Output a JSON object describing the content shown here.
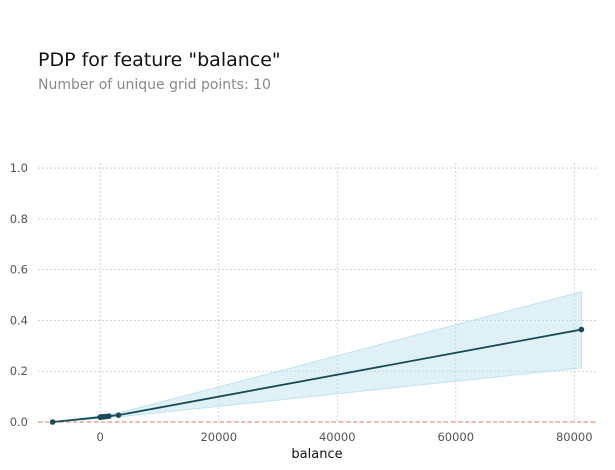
{
  "header": {
    "title": "PDP for feature \"balance\"",
    "subtitle": "Number of unique grid points: 10"
  },
  "chart_data": {
    "type": "line",
    "title": "PDP for feature \"balance\"",
    "subtitle": "Number of unique grid points: 10",
    "xlabel": "balance",
    "ylabel": "",
    "xlim": [
      -10500,
      84000
    ],
    "ylim": [
      0,
      1.0
    ],
    "xticks": [
      0,
      20000,
      40000,
      60000,
      80000
    ],
    "xtick_labels": [
      "0",
      "20000",
      "40000",
      "60000",
      "80000"
    ],
    "yticks": [
      0.0,
      0.2,
      0.4,
      0.6,
      0.8,
      1.0
    ],
    "ytick_labels": [
      "0.0",
      "0.2",
      "0.4",
      "0.6",
      "0.8",
      "1.0"
    ],
    "grid": true,
    "series": [
      {
        "x": [
          -8019,
          0,
          22,
          198,
          448,
          701,
          1125,
          1480,
          3090,
          81204
        ],
        "values": [
          0.0,
          0.019,
          0.019,
          0.02,
          0.02,
          0.021,
          0.022,
          0.023,
          0.027,
          0.364
        ],
        "lower": [
          0.0,
          0.015,
          0.015,
          0.016,
          0.016,
          0.017,
          0.017,
          0.018,
          0.02,
          0.213
        ],
        "upper": [
          0.0,
          0.024,
          0.024,
          0.025,
          0.026,
          0.027,
          0.028,
          0.03,
          0.035,
          0.513
        ]
      }
    ],
    "reference_line": {
      "y": 0.0
    },
    "colors": {
      "line": "#1a4a5a",
      "band": "#bfe3f0",
      "reference": "#e8907a",
      "grid": "#c8c8c8",
      "axis_text": "#555555"
    }
  }
}
